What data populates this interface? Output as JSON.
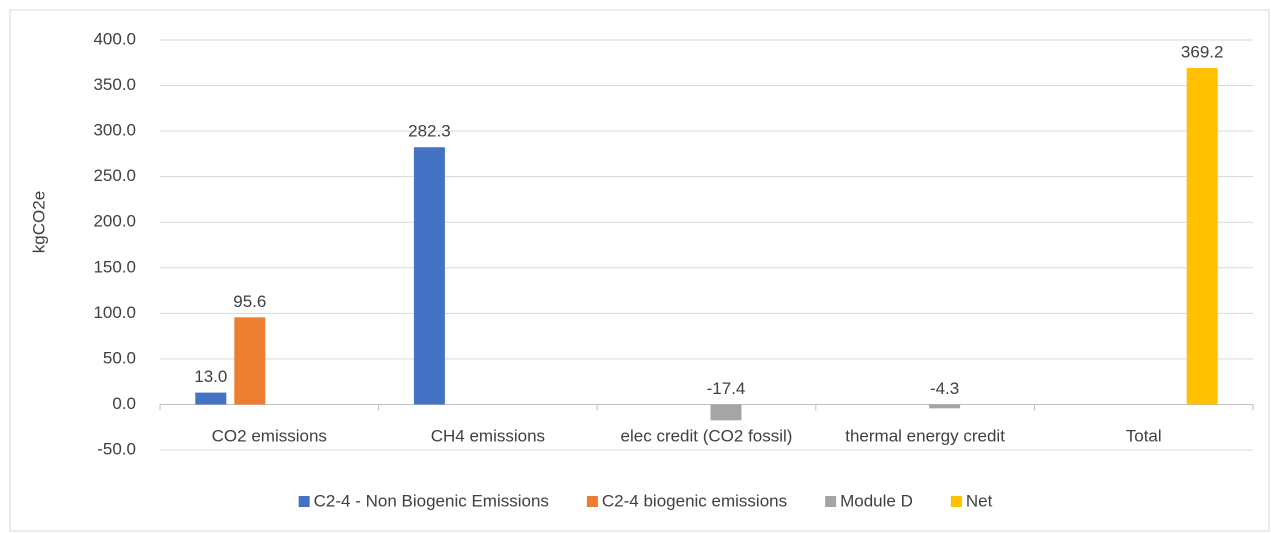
{
  "chart_data": {
    "type": "bar",
    "y_label": "kgCO2e",
    "categories": [
      "CO2 emissions",
      "CH4 emissions",
      "elec credit (CO2 fossil)",
      "thermal energy credit",
      "Total"
    ],
    "series": [
      {
        "name": "C2-4 - Non Biogenic Emissions",
        "color": "#4472c4",
        "values": [
          13.0,
          282.3,
          null,
          null,
          null
        ],
        "value_labels": [
          "13.0",
          "282.3",
          null,
          null,
          null
        ]
      },
      {
        "name": "C2-4 biogenic emissions",
        "color": "#ed7d31",
        "values": [
          95.6,
          null,
          null,
          null,
          null
        ],
        "value_labels": [
          "95.6",
          null,
          null,
          null,
          null
        ]
      },
      {
        "name": "Module D",
        "color": "#a5a5a5",
        "values": [
          null,
          null,
          -17.4,
          -4.3,
          null
        ],
        "value_labels": [
          null,
          null,
          "-17.4",
          "-4.3",
          null
        ]
      },
      {
        "name": "Net",
        "color": "#ffc000",
        "values": [
          null,
          null,
          null,
          null,
          369.2
        ],
        "value_labels": [
          null,
          null,
          null,
          null,
          "369.2"
        ]
      }
    ],
    "ylim": [
      -50,
      400
    ],
    "yticks": [
      {
        "value": -50,
        "label": "-50.0"
      },
      {
        "value": 0,
        "label": "0.0"
      },
      {
        "value": 50,
        "label": "50.0"
      },
      {
        "value": 100,
        "label": "100.0"
      },
      {
        "value": 150,
        "label": "150.0"
      },
      {
        "value": 200,
        "label": "200.0"
      },
      {
        "value": 250,
        "label": "250.0"
      },
      {
        "value": 300,
        "label": "300.0"
      },
      {
        "value": 350,
        "label": "350.0"
      },
      {
        "value": 400,
        "label": "400.0"
      }
    ],
    "grid": true,
    "legend": "bottom"
  }
}
